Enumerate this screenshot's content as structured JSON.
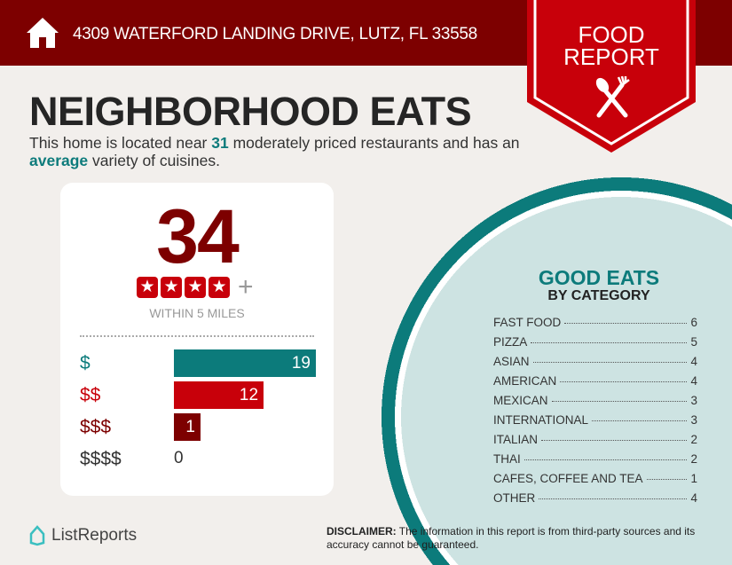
{
  "header": {
    "address": "4309 WATERFORD LANDING DRIVE, LUTZ, FL 33558",
    "icon": "home-icon"
  },
  "ribbon": {
    "line1": "FOOD",
    "line2": "REPORT",
    "icon": "utensils-icon"
  },
  "title": "NEIGHBORHOOD EATS",
  "summary": {
    "pre": "This home is located near ",
    "count": "31",
    "mid": " moderately priced restaurants and has an ",
    "variety": "average",
    "post": " variety of cuisines."
  },
  "card": {
    "total": "34",
    "stars": 4,
    "plus": "+",
    "within": "WITHIN 5 MILES",
    "price_levels": [
      {
        "label": "$",
        "value": 19,
        "color": "#0c7b7b"
      },
      {
        "label": "$$",
        "value": 12,
        "color": "#c8000a"
      },
      {
        "label": "$$$",
        "value": 1,
        "color": "#7d0000"
      },
      {
        "label": "$$$$",
        "value": 0,
        "color": "#333333"
      }
    ]
  },
  "good_eats": {
    "title": "GOOD EATS",
    "subtitle": "BY CATEGORY",
    "categories": [
      {
        "name": "FAST FOOD",
        "count": "6"
      },
      {
        "name": "PIZZA",
        "count": "5"
      },
      {
        "name": "ASIAN",
        "count": "4"
      },
      {
        "name": "AMERICAN",
        "count": "4"
      },
      {
        "name": "MEXICAN",
        "count": "3"
      },
      {
        "name": "INTERNATIONAL",
        "count": "3"
      },
      {
        "name": "ITALIAN",
        "count": "2"
      },
      {
        "name": "THAI",
        "count": "2"
      },
      {
        "name": "CAFES, COFFEE AND TEA",
        "count": "1"
      },
      {
        "name": "OTHER",
        "count": "4"
      }
    ]
  },
  "footer": {
    "brand": "ListReports",
    "disclaimer_label": "DISCLAIMER:",
    "disclaimer": " The information in this report is from third-party sources and its accuracy cannot be guaranteed."
  },
  "colors": {
    "dark_red": "#7d0000",
    "red": "#c8000a",
    "teal": "#0c7b7b"
  }
}
